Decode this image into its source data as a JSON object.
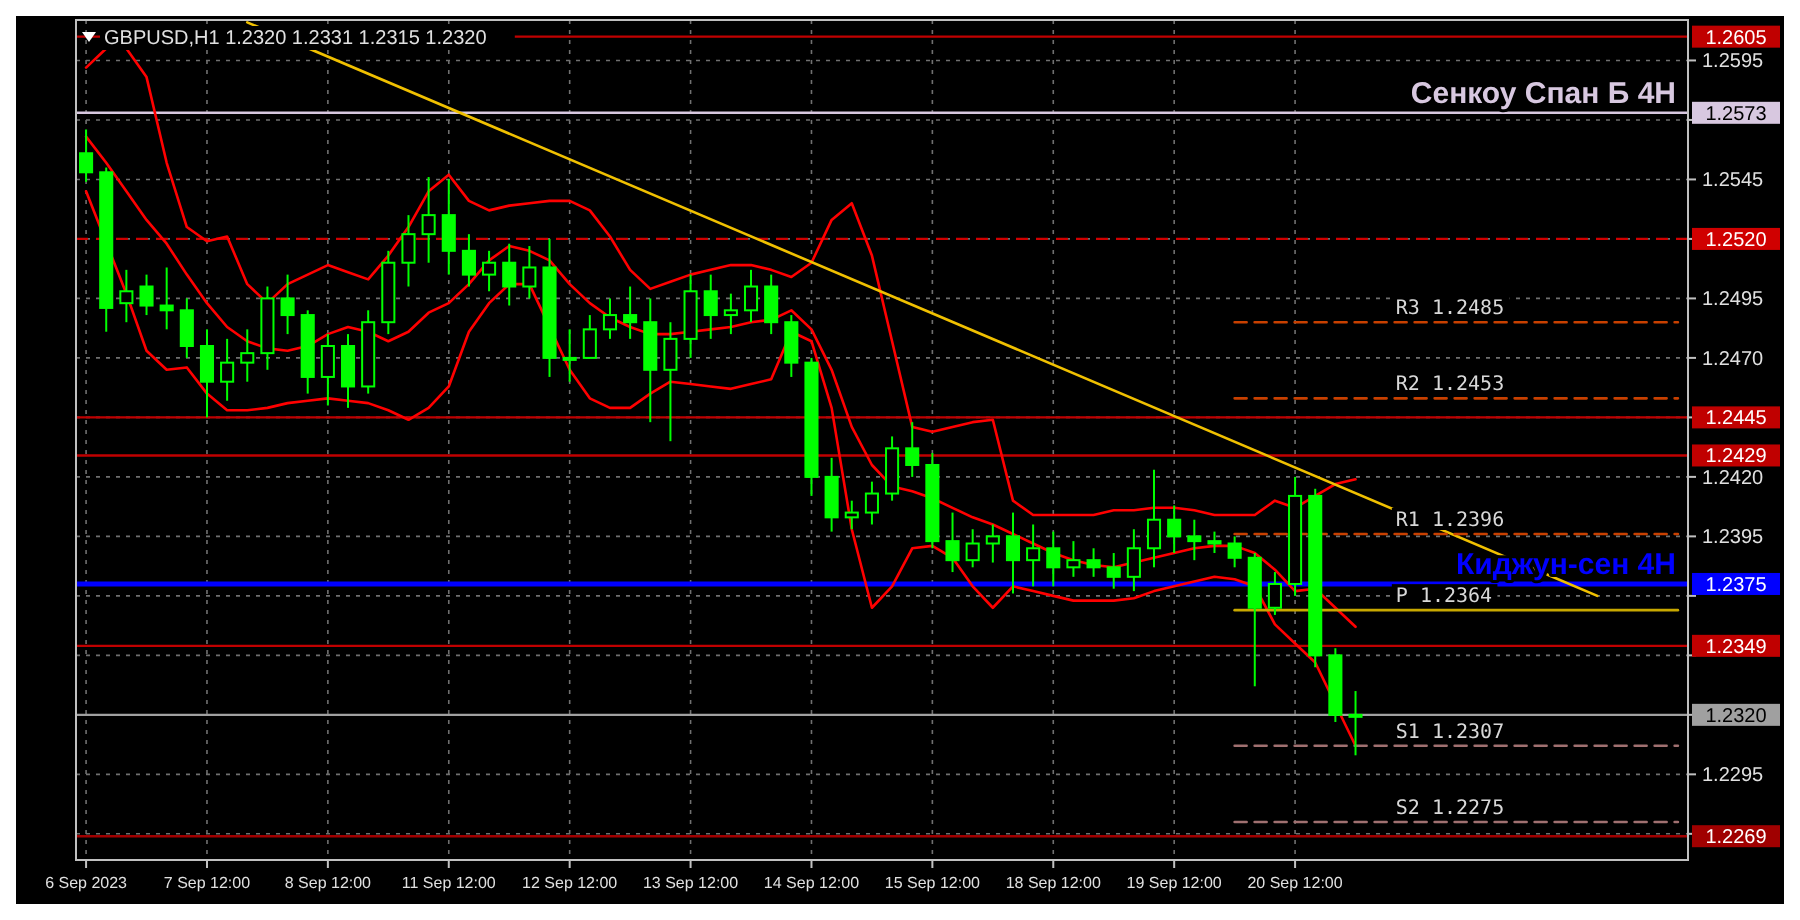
{
  "chart_data": {
    "type": "candlestick",
    "title": "GBPUSD,H1  1.2320 1.2331 1.2315 1.2320",
    "color": "#00ff00",
    "categories": [
      "6 Sep 2023",
      null,
      null,
      null,
      null,
      null,
      "7 Sep 12:00",
      null,
      null,
      null,
      null,
      null,
      "8 Sep 12:00",
      null,
      null,
      null,
      null,
      null,
      "11 Sep 12:00",
      null,
      null,
      null,
      null,
      null,
      "12 Sep 12:00",
      null,
      null,
      null,
      null,
      null,
      "13 Sep 12:00",
      null,
      null,
      null,
      null,
      null,
      "14 Sep 12:00",
      null,
      null,
      null,
      null,
      null,
      "15 Sep 12:00",
      null,
      null,
      null,
      null,
      null,
      "18 Sep 12:00",
      null,
      null,
      null,
      null,
      null,
      "19 Sep 12:00",
      null,
      null,
      null,
      null,
      null,
      "20 Sep 12:00",
      null,
      null,
      null,
      null,
      null,
      null,
      null,
      null,
      null,
      null,
      null,
      null,
      null,
      null,
      null,
      null,
      null,
      null,
      null
    ],
    "ohlc": [
      [
        1.2556,
        1.2566,
        1.2544,
        1.2548
      ],
      [
        1.2548,
        1.255,
        1.2481,
        1.2491
      ],
      [
        1.2493,
        1.2507,
        1.2485,
        1.2498
      ],
      [
        1.25,
        1.2505,
        1.2488,
        1.2492
      ],
      [
        1.2492,
        1.2508,
        1.2482,
        1.249
      ],
      [
        1.249,
        1.2495,
        1.247,
        1.2475
      ],
      [
        1.2475,
        1.2482,
        1.2445,
        1.246
      ],
      [
        1.246,
        1.2478,
        1.2452,
        1.2468
      ],
      [
        1.2468,
        1.2482,
        1.246,
        1.2472
      ],
      [
        1.2472,
        1.25,
        1.2465,
        1.2495
      ],
      [
        1.2495,
        1.2505,
        1.248,
        1.2488
      ],
      [
        1.2488,
        1.249,
        1.2455,
        1.2462
      ],
      [
        1.2462,
        1.248,
        1.245,
        1.2475
      ],
      [
        1.2475,
        1.248,
        1.2449,
        1.2458
      ],
      [
        1.2458,
        1.249,
        1.2455,
        1.2485
      ],
      [
        1.2485,
        1.2515,
        1.248,
        1.251
      ],
      [
        1.251,
        1.253,
        1.25,
        1.2522
      ],
      [
        1.2522,
        1.2546,
        1.251,
        1.253
      ],
      [
        1.253,
        1.2545,
        1.2505,
        1.2515
      ],
      [
        1.2515,
        1.2522,
        1.25,
        1.2505
      ],
      [
        1.2505,
        1.2515,
        1.2498,
        1.251
      ],
      [
        1.251,
        1.2518,
        1.2492,
        1.25
      ],
      [
        1.25,
        1.2517,
        1.2495,
        1.2508
      ],
      [
        1.2508,
        1.252,
        1.2462,
        1.247
      ],
      [
        1.247,
        1.2482,
        1.246,
        1.247
      ],
      [
        1.247,
        1.2488,
        1.247,
        1.2482
      ],
      [
        1.2482,
        1.2495,
        1.2478,
        1.2488
      ],
      [
        1.2488,
        1.25,
        1.2478,
        1.2485
      ],
      [
        1.2485,
        1.2495,
        1.2443,
        1.2465
      ],
      [
        1.2465,
        1.2485,
        1.2435,
        1.2478
      ],
      [
        1.2478,
        1.2505,
        1.247,
        1.2498
      ],
      [
        1.2498,
        1.2505,
        1.2478,
        1.2488
      ],
      [
        1.2488,
        1.2497,
        1.248,
        1.249
      ],
      [
        1.249,
        1.2507,
        1.2485,
        1.25
      ],
      [
        1.25,
        1.2505,
        1.248,
        1.2485
      ],
      [
        1.2485,
        1.2488,
        1.2462,
        1.2468
      ],
      [
        1.2468,
        1.247,
        1.2412,
        1.242
      ],
      [
        1.242,
        1.2428,
        1.2397,
        1.2403
      ],
      [
        1.2403,
        1.241,
        1.2398,
        1.2405
      ],
      [
        1.2405,
        1.2418,
        1.24,
        1.2413
      ],
      [
        1.2413,
        1.2437,
        1.241,
        1.2432
      ],
      [
        1.2432,
        1.2443,
        1.242,
        1.2425
      ],
      [
        1.2425,
        1.243,
        1.239,
        1.2393
      ],
      [
        1.2393,
        1.2405,
        1.238,
        1.2385
      ],
      [
        1.2385,
        1.2398,
        1.2382,
        1.2392
      ],
      [
        1.2392,
        1.24,
        1.2384,
        1.2395
      ],
      [
        1.2395,
        1.2405,
        1.2371,
        1.2385
      ],
      [
        1.2385,
        1.24,
        1.2374,
        1.239
      ],
      [
        1.239,
        1.2397,
        1.2374,
        1.2382
      ],
      [
        1.2382,
        1.2393,
        1.2378,
        1.2385
      ],
      [
        1.2385,
        1.239,
        1.2378,
        1.2382
      ],
      [
        1.2382,
        1.2388,
        1.2373,
        1.2378
      ],
      [
        1.2378,
        1.2398,
        1.2372,
        1.239
      ],
      [
        1.239,
        1.2423,
        1.2382,
        1.2402
      ],
      [
        1.2402,
        1.2408,
        1.2388,
        1.2395
      ],
      [
        1.2395,
        1.2402,
        1.2385,
        1.2393
      ],
      [
        1.2393,
        1.2397,
        1.2388,
        1.2392
      ],
      [
        1.2392,
        1.2395,
        1.2382,
        1.2386
      ],
      [
        1.2386,
        1.2388,
        1.2332,
        1.2365
      ],
      [
        1.2365,
        1.238,
        1.2362,
        1.2375
      ],
      [
        1.2375,
        1.242,
        1.237,
        1.2412
      ],
      [
        1.2412,
        1.2415,
        1.234,
        1.2345
      ],
      [
        1.2345,
        1.2348,
        1.2317,
        1.232
      ],
      [
        1.232,
        1.233,
        1.2303,
        1.232
      ],
      null,
      null,
      null,
      null,
      null,
      null,
      null,
      null,
      null,
      null,
      null,
      null,
      null,
      null,
      null,
      null
    ],
    "series": [
      {
        "type": "line",
        "color": "#ff0000",
        "values": [
          1.2592,
          1.26,
          1.26,
          1.2588,
          1.2552,
          1.2525,
          1.2519,
          1.2521,
          1.2501,
          1.2493,
          1.2501,
          1.2505,
          1.2509,
          1.2506,
          1.2503,
          1.2513,
          1.2525,
          1.254,
          1.2547,
          1.2536,
          1.2532,
          1.2534,
          1.2535,
          1.2536,
          1.2536,
          1.2532,
          1.2521,
          1.2507,
          1.2499,
          1.2502,
          1.2505,
          1.2507,
          1.2509,
          1.2509,
          1.2507,
          1.2504,
          1.251,
          1.2528,
          1.2535,
          1.2513,
          1.2477,
          1.2441,
          1.2439,
          1.2441,
          1.2443,
          1.2444,
          1.241,
          1.2404,
          1.2404,
          1.2404,
          1.2404,
          1.2406,
          1.2406,
          1.2407,
          1.2407,
          1.2406,
          1.2404,
          1.2404,
          1.2404,
          1.241,
          1.2407,
          1.2412,
          1.2417,
          1.2419,
          null,
          null,
          null,
          null,
          null,
          null,
          null,
          null,
          null,
          null,
          null,
          null,
          null,
          null,
          null,
          null
        ]
      },
      {
        "type": "line",
        "color": "#ff0000",
        "values": [
          1.2563,
          1.2552,
          1.254,
          1.2528,
          1.2518,
          1.2505,
          1.2493,
          1.2483,
          1.2477,
          1.2474,
          1.2473,
          1.2475,
          1.248,
          1.2483,
          1.2481,
          1.2477,
          1.2481,
          1.2489,
          1.2493,
          1.2501,
          1.2511,
          1.2517,
          1.2515,
          1.2511,
          1.2501,
          1.2493,
          1.2487,
          1.2483,
          1.248,
          1.248,
          1.2481,
          1.2482,
          1.2483,
          1.2485,
          1.2486,
          1.249,
          1.2482,
          1.2465,
          1.2441,
          1.2425,
          1.2416,
          1.2414,
          1.2411,
          1.2407,
          1.2403,
          1.24,
          1.2396,
          1.2392,
          1.2388,
          1.2385,
          1.2383,
          1.2382,
          1.2384,
          1.2386,
          1.2388,
          1.239,
          1.2391,
          1.2391,
          1.2388,
          1.2381,
          1.2372,
          1.2373,
          1.2365,
          1.2357,
          null,
          null,
          null,
          null,
          null,
          null,
          null,
          null,
          null,
          null,
          null,
          null,
          null,
          null,
          null,
          null
        ]
      },
      {
        "type": "line",
        "color": "#ff0000",
        "values": [
          1.254,
          null,
          1.2497,
          1.2473,
          1.2465,
          1.2466,
          1.2455,
          1.2448,
          1.2448,
          1.2449,
          1.2451,
          1.2452,
          1.2453,
          1.2452,
          1.2451,
          1.2448,
          1.2444,
          1.2449,
          1.2458,
          1.2481,
          1.2493,
          1.2501,
          1.2501,
          null,
          1.2465,
          1.2453,
          1.2449,
          1.2449,
          1.2455,
          1.246,
          1.2459,
          1.2458,
          1.2457,
          1.2459,
          1.2461,
          1.2481,
          1.2477,
          1.2449,
          1.2398,
          1.2365,
          1.2374,
          1.239,
          1.2391,
          1.2386,
          1.2374,
          1.2365,
          1.2374,
          1.2372,
          1.237,
          1.2368,
          1.2368,
          1.2368,
          1.2369,
          1.2372,
          1.2374,
          1.2376,
          1.2378,
          1.2377,
          1.2374,
          1.2358,
          1.235,
          1.2342,
          null,
          1.2307,
          null,
          null,
          null,
          null,
          null,
          null,
          null,
          null,
          null,
          null,
          null,
          null,
          null,
          null,
          null,
          null
        ]
      },
      {
        "type": "line",
        "color": "#f0c000",
        "values": [
          null,
          null,
          null,
          null,
          null,
          null,
          null,
          null,
          1.2611,
          null,
          null,
          null,
          null,
          null,
          null,
          null,
          null,
          null,
          null,
          null,
          null,
          null,
          null,
          null,
          null,
          null,
          null,
          null,
          null,
          null,
          null,
          null,
          null,
          null,
          null,
          null,
          null,
          null,
          null,
          null,
          null,
          null,
          null,
          null,
          null,
          null,
          null,
          null,
          null,
          null,
          null,
          null,
          null,
          null,
          null,
          null,
          null,
          null,
          null,
          null,
          null,
          null,
          null,
          null,
          null,
          null,
          null,
          null,
          null,
          null,
          null,
          null,
          null,
          null,
          null,
          1.237,
          null,
          null,
          null,
          null
        ]
      },
      {
        "type": "line",
        "name": "R3 1.2485",
        "color": "#c84000",
        "line_style": "dashed",
        "values": [
          null,
          null,
          null,
          null,
          null,
          null,
          null,
          null,
          null,
          null,
          null,
          null,
          null,
          null,
          null,
          null,
          null,
          null,
          null,
          null,
          null,
          null,
          null,
          null,
          null,
          null,
          null,
          null,
          null,
          null,
          null,
          null,
          null,
          null,
          null,
          null,
          null,
          null,
          null,
          null,
          null,
          null,
          null,
          null,
          null,
          null,
          null,
          null,
          null,
          null,
          null,
          null,
          null,
          null,
          null,
          null,
          null,
          1.2485,
          1.2485,
          1.2485,
          1.2485,
          1.2485,
          1.2485,
          1.2485,
          1.2485,
          1.2485,
          1.2485,
          1.2485,
          1.2485,
          1.2485,
          1.2485,
          1.2485,
          1.2485,
          1.2485,
          1.2485,
          1.2485,
          1.2485,
          1.2485,
          1.2485,
          1.2485
        ]
      },
      {
        "type": "line",
        "name": "R2 1.2453",
        "color": "#c84000",
        "line_style": "dashed",
        "values": [
          null,
          null,
          null,
          null,
          null,
          null,
          null,
          null,
          null,
          null,
          null,
          null,
          null,
          null,
          null,
          null,
          null,
          null,
          null,
          null,
          null,
          null,
          null,
          null,
          null,
          null,
          null,
          null,
          null,
          null,
          null,
          null,
          null,
          null,
          null,
          null,
          null,
          null,
          null,
          null,
          null,
          null,
          null,
          null,
          null,
          null,
          null,
          null,
          null,
          null,
          null,
          null,
          null,
          null,
          null,
          null,
          null,
          1.2453,
          1.2453,
          1.2453,
          1.2453,
          1.2453,
          1.2453,
          1.2453,
          1.2453,
          1.2453,
          1.2453,
          1.2453,
          1.2453,
          1.2453,
          1.2453,
          1.2453,
          1.2453,
          1.2453,
          1.2453,
          1.2453,
          1.2453,
          1.2453,
          1.2453,
          1.2453
        ]
      },
      {
        "type": "line",
        "name": "R1 1.2396",
        "color": "#c84000",
        "line_style": "dashed",
        "values": [
          null,
          null,
          null,
          null,
          null,
          null,
          null,
          null,
          null,
          null,
          null,
          null,
          null,
          null,
          null,
          null,
          null,
          null,
          null,
          null,
          null,
          null,
          null,
          null,
          null,
          null,
          null,
          null,
          null,
          null,
          null,
          null,
          null,
          null,
          null,
          null,
          null,
          null,
          null,
          null,
          null,
          null,
          null,
          null,
          null,
          null,
          null,
          null,
          null,
          null,
          null,
          null,
          null,
          null,
          null,
          null,
          null,
          1.2396,
          1.2396,
          1.2396,
          1.2396,
          1.2396,
          1.2396,
          1.2396,
          1.2396,
          1.2396,
          1.2396,
          1.2396,
          1.2396,
          1.2396,
          1.2396,
          1.2396,
          1.2396,
          1.2396,
          1.2396,
          1.2396,
          1.2396,
          1.2396,
          1.2396,
          1.2396
        ]
      },
      {
        "type": "line",
        "name": "P 1.2364",
        "color": "#c8a800",
        "line_style": "solid",
        "values": [
          null,
          null,
          null,
          null,
          null,
          null,
          null,
          null,
          null,
          null,
          null,
          null,
          null,
          null,
          null,
          null,
          null,
          null,
          null,
          null,
          null,
          null,
          null,
          null,
          null,
          null,
          null,
          null,
          null,
          null,
          null,
          null,
          null,
          null,
          null,
          null,
          null,
          null,
          null,
          null,
          null,
          null,
          null,
          null,
          null,
          null,
          null,
          null,
          null,
          null,
          null,
          null,
          null,
          null,
          null,
          null,
          null,
          1.2364,
          1.2364,
          1.2364,
          1.2364,
          1.2364,
          1.2364,
          1.2364,
          1.2364,
          1.2364,
          1.2364,
          1.2364,
          1.2364,
          1.2364,
          1.2364,
          1.2364,
          1.2364,
          1.2364,
          1.2364,
          1.2364,
          1.2364,
          1.2364,
          1.2364,
          1.2364
        ]
      },
      {
        "type": "line",
        "name": "S1 1.2307",
        "color": "#a07070",
        "line_style": "dashed",
        "values": [
          null,
          null,
          null,
          null,
          null,
          null,
          null,
          null,
          null,
          null,
          null,
          null,
          null,
          null,
          null,
          null,
          null,
          null,
          null,
          null,
          null,
          null,
          null,
          null,
          null,
          null,
          null,
          null,
          null,
          null,
          null,
          null,
          null,
          null,
          null,
          null,
          null,
          null,
          null,
          null,
          null,
          null,
          null,
          null,
          null,
          null,
          null,
          null,
          null,
          null,
          null,
          null,
          null,
          null,
          null,
          null,
          null,
          1.2307,
          1.2307,
          1.2307,
          1.2307,
          1.2307,
          1.2307,
          1.2307,
          1.2307,
          1.2307,
          1.2307,
          1.2307,
          1.2307,
          1.2307,
          1.2307,
          1.2307,
          1.2307,
          1.2307,
          1.2307,
          1.2307,
          1.2307,
          1.2307,
          1.2307,
          1.2307
        ]
      },
      {
        "type": "line",
        "name": "S2 1.2275",
        "color": "#a07070",
        "line_style": "dashed",
        "values": [
          null,
          null,
          null,
          null,
          null,
          null,
          null,
          null,
          null,
          null,
          null,
          null,
          null,
          null,
          null,
          null,
          null,
          null,
          null,
          null,
          null,
          null,
          null,
          null,
          null,
          null,
          null,
          null,
          null,
          null,
          null,
          null,
          null,
          null,
          null,
          null,
          null,
          null,
          null,
          null,
          null,
          null,
          null,
          null,
          null,
          null,
          null,
          null,
          null,
          null,
          null,
          null,
          null,
          null,
          null,
          null,
          null,
          1.2275,
          1.2275,
          1.2275,
          1.2275,
          1.2275,
          1.2275,
          1.2275,
          1.2275,
          1.2275,
          1.2275,
          1.2275,
          1.2275,
          1.2275,
          1.2275,
          1.2275,
          1.2275,
          1.2275,
          1.2275,
          1.2275,
          1.2275,
          1.2275,
          1.2275,
          1.2275
        ]
      }
    ],
    "ylim": [
      1.2259,
      1.2612
    ],
    "yticks": [
      {
        "value": 1.227,
        "label": null
      },
      1.2295,
      {
        "value": 1.232,
        "label": null
      },
      {
        "value": 1.2345,
        "label": null
      },
      {
        "value": 1.237,
        "label": null
      },
      1.2395,
      {
        "value": 1.242,
        "label": "1.2420"
      },
      {
        "value": 1.2445,
        "label": null
      },
      {
        "value": 1.247,
        "label": "1.2470"
      },
      1.2495,
      {
        "value": 1.252,
        "label": null
      },
      1.2545,
      {
        "value": 1.257,
        "label": null
      },
      1.2595
    ],
    "grid": true,
    "ref_lines": [
      {
        "axis": "y",
        "value": 1.2605,
        "label": "1.2605",
        "color": "#c00000"
      },
      {
        "axis": "y",
        "value": 1.2573,
        "label": "1.2573",
        "color": "#d8c8e0"
      },
      {
        "axis": "y",
        "value": 1.252,
        "label": "1.2520",
        "color": "#d00000",
        "line_style": "dashed"
      },
      {
        "axis": "y",
        "value": 1.2445,
        "label": "1.2445",
        "color": "#c00000"
      },
      {
        "axis": "y",
        "value": 1.2429,
        "label": "1.2429",
        "color": "#c00000"
      },
      {
        "axis": "y",
        "value": 1.2375,
        "label": "1.2375",
        "color": "#0000ff"
      },
      {
        "axis": "y",
        "value": 1.2349,
        "label": "1.2349",
        "color": "#c00000"
      },
      {
        "axis": "y",
        "value": 1.232,
        "label": "1.2320",
        "color": "#a0a0a0"
      },
      {
        "axis": "y",
        "value": 1.2269,
        "label": "1.2269",
        "color": "#a00000"
      }
    ],
    "annotations": [
      {
        "text": "Сенкоу Спан Б 4H",
        "y": 1.2573
      },
      {
        "text": "Киджун-сен 4H",
        "y": 1.2375
      }
    ]
  }
}
